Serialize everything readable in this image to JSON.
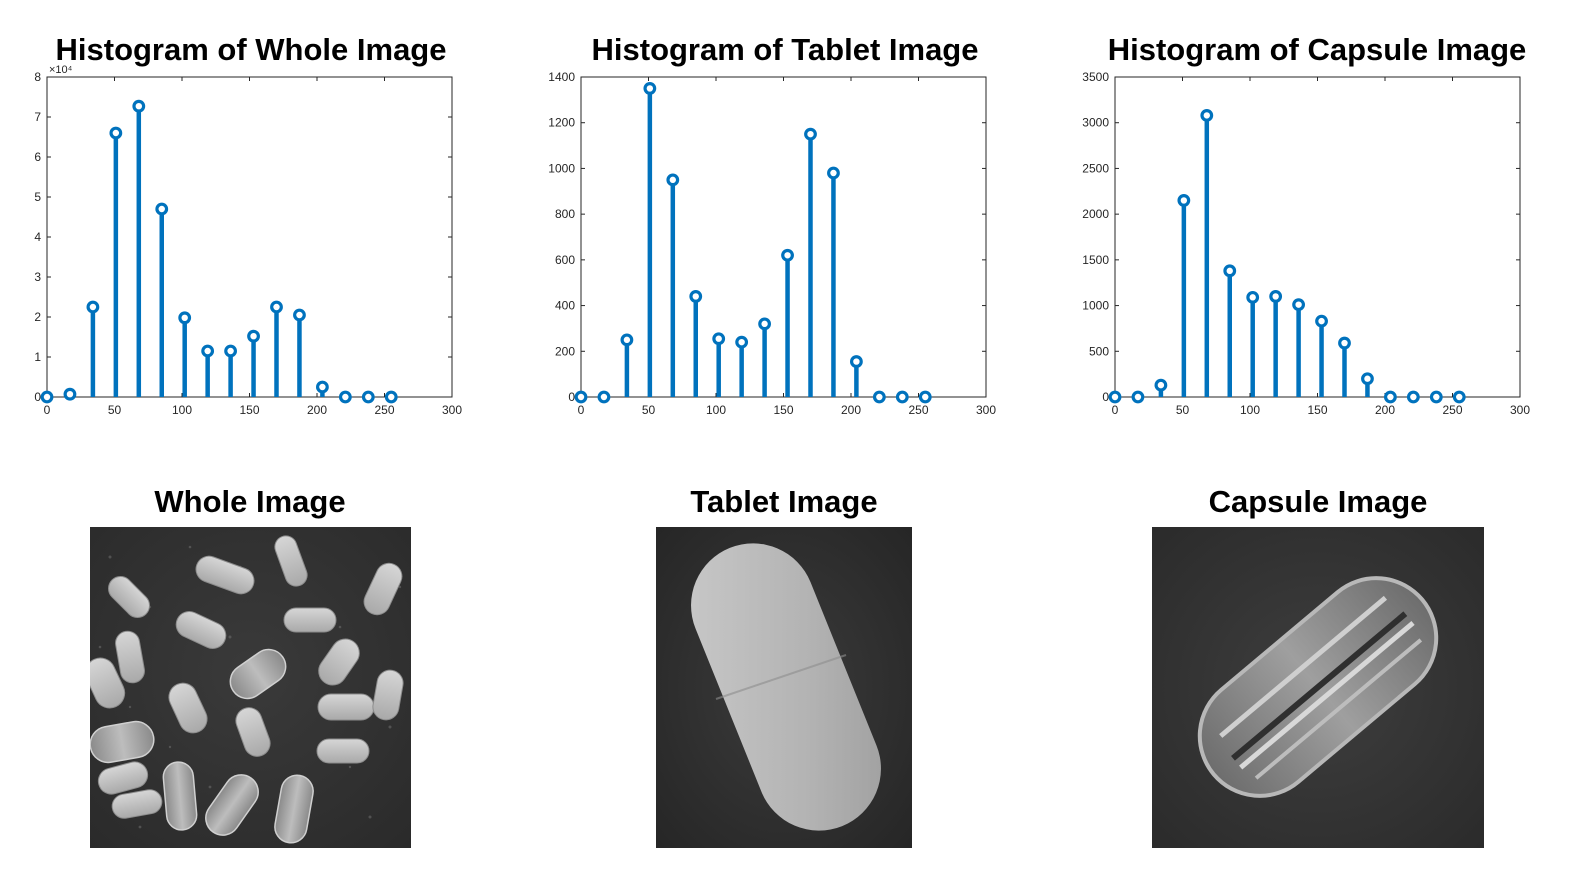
{
  "figure": {
    "panel_titles": {
      "whole_image": "Whole Image",
      "tablet_image": "Tablet Image",
      "capsule_image": "Capsule Image"
    }
  },
  "chart_data": [
    {
      "type": "stem",
      "title": "Histogram of Whole Image",
      "xlabel": "",
      "ylabel": "",
      "xlim": [
        0,
        300
      ],
      "ylim": [
        0,
        80000
      ],
      "xticks": [
        0,
        50,
        100,
        150,
        200,
        250,
        300
      ],
      "yticks": [
        0,
        1,
        2,
        3,
        4,
        5,
        6,
        7,
        8
      ],
      "y_exponent_label": "×10⁴",
      "y_scale_factor": 10000,
      "color": "#0072BD",
      "x": [
        0,
        17,
        34,
        51,
        68,
        85,
        102,
        119,
        136,
        153,
        170,
        187,
        204,
        221,
        238,
        255
      ],
      "values": [
        0,
        700,
        22500,
        66000,
        72700,
        47000,
        19800,
        11500,
        11500,
        15200,
        22500,
        20500,
        2500,
        0,
        0,
        0
      ]
    },
    {
      "type": "stem",
      "title": "Histogram of Tablet Image",
      "xlabel": "",
      "ylabel": "",
      "xlim": [
        0,
        300
      ],
      "ylim": [
        0,
        1400
      ],
      "xticks": [
        0,
        50,
        100,
        150,
        200,
        250,
        300
      ],
      "yticks": [
        0,
        200,
        400,
        600,
        800,
        1000,
        1200,
        1400
      ],
      "color": "#0072BD",
      "x": [
        0,
        17,
        34,
        51,
        68,
        85,
        102,
        119,
        136,
        153,
        170,
        187,
        204,
        221,
        238,
        255
      ],
      "values": [
        0,
        0,
        250,
        1350,
        950,
        440,
        255,
        240,
        320,
        620,
        1150,
        980,
        155,
        0,
        0,
        0
      ]
    },
    {
      "type": "stem",
      "title": "Histogram of Capsule Image",
      "xlabel": "",
      "ylabel": "",
      "xlim": [
        0,
        300
      ],
      "ylim": [
        0,
        3500
      ],
      "xticks": [
        0,
        50,
        100,
        150,
        200,
        250,
        300
      ],
      "yticks": [
        0,
        500,
        1000,
        1500,
        2000,
        2500,
        3000,
        3500
      ],
      "color": "#0072BD",
      "x": [
        0,
        17,
        34,
        51,
        68,
        85,
        102,
        119,
        136,
        153,
        170,
        187,
        204,
        221,
        238,
        255
      ],
      "values": [
        0,
        0,
        130,
        2150,
        3080,
        1380,
        1090,
        1100,
        1010,
        830,
        590,
        200,
        0,
        0,
        0,
        0
      ]
    }
  ]
}
